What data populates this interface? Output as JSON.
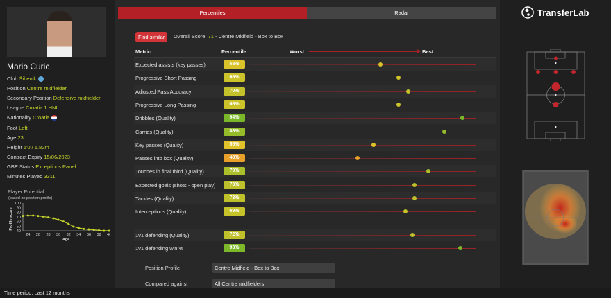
{
  "player": {
    "name": "Mario Curic",
    "fields": [
      {
        "label": "Club",
        "value": "Šibenik"
      },
      {
        "label": "Position",
        "value": "Centre midfielder"
      },
      {
        "label": "Secondary Position",
        "value": "Defensive midfielder"
      },
      {
        "label": "League",
        "value": "Croatia 1.HNL"
      },
      {
        "label": "Nationality",
        "value": "Croatia"
      },
      {
        "label": "Foot",
        "value": "Left"
      },
      {
        "label": "Age",
        "value": "23"
      },
      {
        "label": "Height",
        "value": "6'0 / 1.82m"
      },
      {
        "label": "Contract Expiry",
        "value": "15/06/2023"
      },
      {
        "label": "GBE Status",
        "value": "Exceptions Panel"
      },
      {
        "label": "Minutes Played",
        "value": "3311"
      }
    ]
  },
  "potential": {
    "title": "Player Potential",
    "subtitle": "(based on position profile)"
  },
  "chart_data": {
    "type": "line",
    "title": "Player Potential",
    "xlabel": "Age",
    "ylabel": "Profile score",
    "x": [
      23,
      24,
      25,
      26,
      27,
      28,
      29,
      30,
      31,
      32,
      33,
      34,
      35,
      36,
      37,
      38,
      39,
      40
    ],
    "values": [
      72,
      73,
      73,
      72,
      71,
      69,
      67,
      64,
      60,
      55,
      49,
      46,
      44,
      43,
      42,
      41,
      40,
      40
    ],
    "xticks": [
      24,
      26,
      28,
      30,
      32,
      34,
      36,
      38,
      40
    ],
    "yticks": [
      40,
      50,
      60,
      70,
      80,
      90,
      100
    ],
    "ylim": [
      40,
      100
    ],
    "color": "#c8d62a"
  },
  "tabs": [
    {
      "label": "Percentiles",
      "active": true
    },
    {
      "label": "Radar",
      "active": false
    }
  ],
  "find_similar": "Find similar",
  "overall": {
    "prefix": "Overall Score: ",
    "score": "71",
    "suffix": " - Centre Midfield - Box to Box"
  },
  "headers": {
    "metric": "Metric",
    "percentile": "Percentile",
    "worst": "Worst",
    "best": "Best"
  },
  "metrics": [
    {
      "label": "Expected assists (key passes)",
      "value": 58,
      "text": "58%",
      "color": "#d9c22a"
    },
    {
      "label": "Progressive Short Passing",
      "value": 66,
      "text": "66%",
      "color": "#ccc22a"
    },
    {
      "label": "Adjusted Pass Accuracy",
      "value": 70,
      "text": "70%",
      "color": "#c4c22a"
    },
    {
      "label": "Progressive Long Passing",
      "value": 66,
      "text": "66%",
      "color": "#ccc22a"
    },
    {
      "label": "Dribbles (Quality)",
      "value": 94,
      "text": "94%",
      "color": "#7ab82a"
    },
    {
      "label": "Carries (Quality)",
      "value": 86,
      "text": "86%",
      "color": "#96bc2a"
    },
    {
      "label": "Key passes (Quality)",
      "value": 55,
      "text": "55%",
      "color": "#e0c22a"
    },
    {
      "label": "Passes into box (Quality)",
      "value": 48,
      "text": "48%",
      "color": "#e8a02a"
    },
    {
      "label": "Touches in final third (Quality)",
      "value": 79,
      "text": "79%",
      "color": "#aabf2a"
    },
    {
      "label": "Expected goals (shots - open play)",
      "value": 73,
      "text": "73%",
      "color": "#bec12a"
    },
    {
      "label": "Tackles (Quality)",
      "value": 73,
      "text": "73%",
      "color": "#bec12a"
    },
    {
      "label": "Interceptions (Quality)",
      "value": 69,
      "text": "69%",
      "color": "#c6c22a"
    }
  ],
  "metrics2": [
    {
      "label": "1v1 defending (Quality)",
      "value": 72,
      "text": "72%",
      "color": "#c0c12a"
    },
    {
      "label": "1v1 defending win %",
      "value": 93,
      "text": "93%",
      "color": "#7cb82a"
    }
  ],
  "filters": [
    {
      "label": "Position Profile",
      "value": "Centre Midfield - Box to Box"
    },
    {
      "label": "Compared against",
      "value": "All Centre midfielders"
    }
  ],
  "logo": "TransferLab",
  "time_period": "Time period: Last 12 months"
}
